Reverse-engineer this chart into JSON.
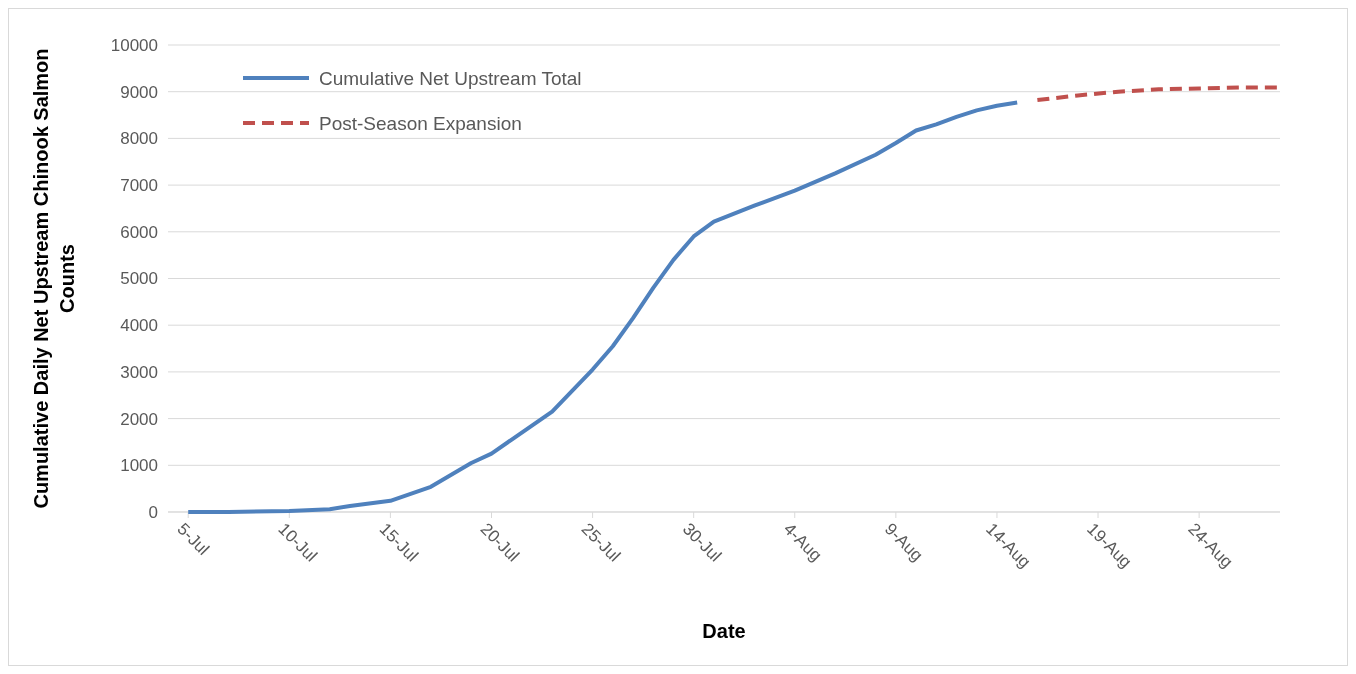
{
  "chart_data": {
    "type": "line",
    "xlabel": "Date",
    "ylabel": "Cumulative Daily Net Upstream Chinook Salmon Counts",
    "xlim": [
      "--07-04",
      "--08-28"
    ],
    "ylim": [
      0,
      10000
    ],
    "xticks": [
      {
        "value": "--07-05",
        "label": "5-Jul"
      },
      {
        "value": "--07-10",
        "label": "10-Jul"
      },
      {
        "value": "--07-15",
        "label": "15-Jul"
      },
      {
        "value": "--07-20",
        "label": "20-Jul"
      },
      {
        "value": "--07-25",
        "label": "25-Jul"
      },
      {
        "value": "--07-30",
        "label": "30-Jul"
      },
      {
        "value": "--08-04",
        "label": "4-Aug"
      },
      {
        "value": "--08-09",
        "label": "9-Aug"
      },
      {
        "value": "--08-14",
        "label": "14-Aug"
      },
      {
        "value": "--08-19",
        "label": "19-Aug"
      },
      {
        "value": "--08-24",
        "label": "24-Aug"
      }
    ],
    "yticks": [
      0,
      1000,
      2000,
      3000,
      4000,
      5000,
      6000,
      7000,
      8000,
      9000,
      10000
    ],
    "grid": "y",
    "legend": "top left",
    "series": [
      {
        "name": "Cumulative Net Upstream Total",
        "color": "#4f81bd",
        "line_style": "solid",
        "x": [
          "--07-05",
          "--07-07",
          "--07-10",
          "--07-12",
          "--07-13",
          "--07-15",
          "--07-17",
          "--07-19",
          "--07-20",
          "--07-21",
          "--07-23",
          "--07-24",
          "--07-25",
          "--07-26",
          "--07-27",
          "--07-28",
          "--07-29",
          "--07-30",
          "--07-31",
          "--08-02",
          "--08-04",
          "--08-06",
          "--08-08",
          "--08-09",
          "--08-10",
          "--08-11",
          "--08-12",
          "--08-13",
          "--08-14",
          "--08-15"
        ],
        "values": [
          0,
          0,
          20,
          60,
          130,
          240,
          540,
          1050,
          1250,
          1550,
          2150,
          2600,
          3050,
          3550,
          4150,
          4800,
          5400,
          5900,
          6220,
          6560,
          6880,
          7250,
          7650,
          7900,
          8170,
          8300,
          8460,
          8600,
          8700,
          8770
        ]
      },
      {
        "name": "Post-Season Expansion",
        "color": "#c0504d",
        "line_style": "dashed",
        "x": [
          "--08-16",
          "--08-18",
          "--08-20",
          "--08-22",
          "--08-24",
          "--08-26",
          "--08-28"
        ],
        "values": [
          8820,
          8920,
          9000,
          9050,
          9070,
          9090,
          9090
        ]
      }
    ]
  }
}
